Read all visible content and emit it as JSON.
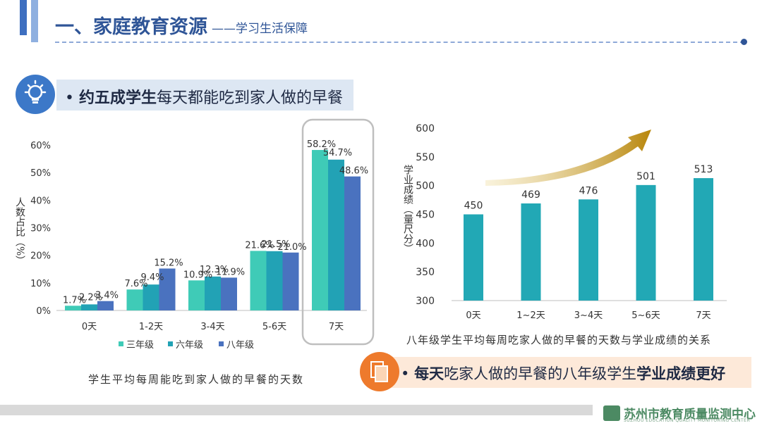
{
  "header": {
    "title": "一、家庭教育资源",
    "subtitle": "——学习生活保障",
    "accent_color": "#2f5597"
  },
  "callout_top": {
    "bullet": "•",
    "bold": "约五成学生",
    "rest": "每天都能吃到家人做的早餐",
    "icon": "lightbulb-icon"
  },
  "callout_bottom": {
    "bullet": "•",
    "bold1": "每天",
    "mid": "吃家人做的早餐的八年级学生",
    "bold2": "学业成绩更好",
    "icon": "document-icon"
  },
  "chart_data": [
    {
      "type": "bar",
      "ylabel": "人数占比（%）",
      "ylim": [
        0,
        60
      ],
      "yticks": [
        "0%",
        "10%",
        "20%",
        "30%",
        "40%",
        "50%",
        "60%"
      ],
      "categories": [
        "0天",
        "1-2天",
        "3-4天",
        "5-6天",
        "7天"
      ],
      "series": [
        {
          "name": "三年级",
          "color": "#3fcbb7",
          "values": [
            1.7,
            7.6,
            10.9,
            21.6,
            58.2
          ],
          "labels": [
            "1.7%",
            "7.6%",
            "10.9%",
            "21.6%",
            "58.2%"
          ]
        },
        {
          "name": "六年级",
          "color": "#22a2b5",
          "values": [
            2.2,
            9.4,
            12.3,
            21.5,
            54.7
          ],
          "labels": [
            "2.2%",
            "9.4%",
            "12.3%",
            "21.5%",
            "54.7%"
          ]
        },
        {
          "name": "八年级",
          "color": "#4a72bf",
          "values": [
            3.4,
            15.2,
            11.9,
            21.0,
            48.6
          ],
          "labels": [
            "3.4%",
            "15.2%",
            "11.9%",
            "21.0%",
            "48.6%"
          ]
        }
      ],
      "highlight_category": "7天",
      "caption": "学生平均每周能吃到家人做的早餐的天数"
    },
    {
      "type": "bar",
      "ylabel": "学业成绩（量尺分）",
      "ylim": [
        300,
        600
      ],
      "yticks": [
        "300",
        "350",
        "400",
        "450",
        "500",
        "550",
        "600"
      ],
      "categories": [
        "0天",
        "1~2天",
        "3~4天",
        "5~6天",
        "7天"
      ],
      "series": [
        {
          "name": "八年级",
          "color": "#22a8b5",
          "values": [
            450,
            469,
            476,
            501,
            513
          ],
          "labels": [
            "450",
            "469",
            "476",
            "501",
            "513"
          ]
        }
      ],
      "trend_arrow": "upward",
      "caption": "八年级学生平均每周吃家人做的早餐的天数与学业成绩的关系"
    }
  ],
  "footer": {
    "org": "苏州市教育质量监测中心",
    "org_en": "SUZHOU EDUCATION QUALITY MONITORING CENTER"
  }
}
